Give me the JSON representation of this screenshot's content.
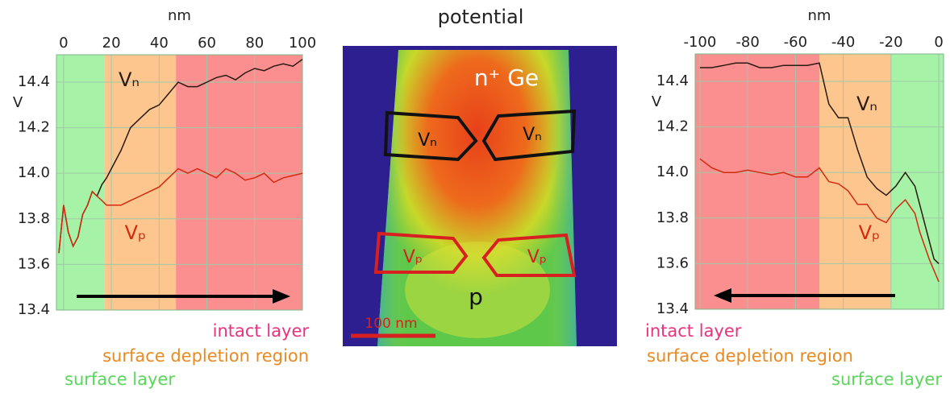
{
  "chart_data": [
    {
      "type": "line",
      "x_label": "nm",
      "y_label": "V",
      "xlim": [
        -3,
        100
      ],
      "xticks": [
        0,
        20,
        40,
        60,
        80,
        100
      ],
      "ylim": [
        13.4,
        14.52
      ],
      "yticks": [
        13.4,
        13.6,
        13.8,
        {
          "value": 14,
          "label": "14.0"
        },
        14.2,
        14.4
      ],
      "grid": true,
      "regions": [
        {
          "name": "intact layer",
          "color": "#fb8f8f",
          "text_color": "#e8337f",
          "from": 47,
          "to": 100
        },
        {
          "name": "surface depletion region",
          "color": "#fdc68e",
          "text_color": "#e88a22",
          "from": 17,
          "to": 47
        },
        {
          "name": "surface layer",
          "color": "#a6f2a6",
          "text_color": "#5ad65a",
          "from": -3,
          "to": 17
        }
      ],
      "x": [
        -2,
        0,
        2,
        4,
        6,
        8,
        10,
        12,
        14,
        16,
        18,
        20,
        24,
        28,
        32,
        36,
        40,
        44,
        48,
        52,
        56,
        60,
        64,
        68,
        72,
        76,
        80,
        84,
        88,
        92,
        96,
        100
      ],
      "series": [
        {
          "name": "Vₙ",
          "color": "#2a1a10",
          "values": [
            13.65,
            13.86,
            13.74,
            13.68,
            13.72,
            13.82,
            13.86,
            13.92,
            13.9,
            13.95,
            13.98,
            14.02,
            14.1,
            14.2,
            14.24,
            14.28,
            14.3,
            14.35,
            14.4,
            14.38,
            14.38,
            14.4,
            14.42,
            14.43,
            14.41,
            14.44,
            14.46,
            14.45,
            14.47,
            14.48,
            14.47,
            14.5
          ]
        },
        {
          "name": "Vₚ",
          "color": "#d42a10",
          "values": [
            13.65,
            13.86,
            13.74,
            13.68,
            13.72,
            13.82,
            13.86,
            13.92,
            13.9,
            13.88,
            13.86,
            13.86,
            13.86,
            13.88,
            13.9,
            13.92,
            13.94,
            13.98,
            14.02,
            14.0,
            14.02,
            14.0,
            13.98,
            14.02,
            14.0,
            13.97,
            13.98,
            14.0,
            13.96,
            13.98,
            13.99,
            14.0
          ]
        }
      ]
    },
    {
      "type": "line",
      "x_label": "nm",
      "y_label": "V",
      "xlim": [
        -102,
        2
      ],
      "xticks": [
        -100,
        -80,
        -60,
        -40,
        -20,
        0
      ],
      "ylim": [
        13.4,
        14.52
      ],
      "yticks": [
        13.4,
        13.6,
        13.8,
        {
          "value": 14,
          "label": "14.0"
        },
        14.2,
        14.4
      ],
      "grid": true,
      "regions": [
        {
          "name": "intact layer",
          "color": "#fb8f8f",
          "text_color": "#e8337f",
          "from": -102,
          "to": -50
        },
        {
          "name": "surface depletion region",
          "color": "#fdc68e",
          "text_color": "#e88a22",
          "from": -50,
          "to": -20
        },
        {
          "name": "surface layer",
          "color": "#a6f2a6",
          "text_color": "#5ad65a",
          "from": -20,
          "to": 2
        }
      ],
      "x": [
        -100,
        -95,
        -90,
        -85,
        -80,
        -75,
        -70,
        -65,
        -60,
        -55,
        -50,
        -46,
        -42,
        -38,
        -34,
        -30,
        -26,
        -22,
        -18,
        -14,
        -10,
        -8,
        -6,
        -4,
        -2,
        0
      ],
      "series": [
        {
          "name": "Vₙ",
          "color": "#2a1a10",
          "values": [
            14.46,
            14.46,
            14.47,
            14.48,
            14.48,
            14.46,
            14.46,
            14.47,
            14.47,
            14.47,
            14.48,
            14.3,
            14.24,
            14.24,
            14.1,
            13.98,
            13.93,
            13.9,
            13.94,
            14.0,
            13.94,
            13.86,
            13.78,
            13.7,
            13.62,
            13.6
          ]
        },
        {
          "name": "Vₚ",
          "color": "#d42a10",
          "values": [
            14.06,
            14.02,
            14.0,
            14.0,
            14.01,
            14.0,
            13.99,
            14.0,
            13.98,
            13.98,
            14.02,
            13.96,
            13.95,
            13.92,
            13.86,
            13.86,
            13.8,
            13.78,
            13.84,
            13.88,
            13.82,
            13.74,
            13.68,
            13.62,
            13.57,
            13.52
          ]
        }
      ]
    }
  ],
  "image": {
    "title": "potential",
    "region_top": "n⁺ Ge",
    "region_bottom": "p",
    "box_n_left": "Vₙ",
    "box_n_right": "Vₙ",
    "box_p_left": "Vₚ",
    "box_p_right": "Vₚ",
    "scale_bar": "100 nm"
  }
}
